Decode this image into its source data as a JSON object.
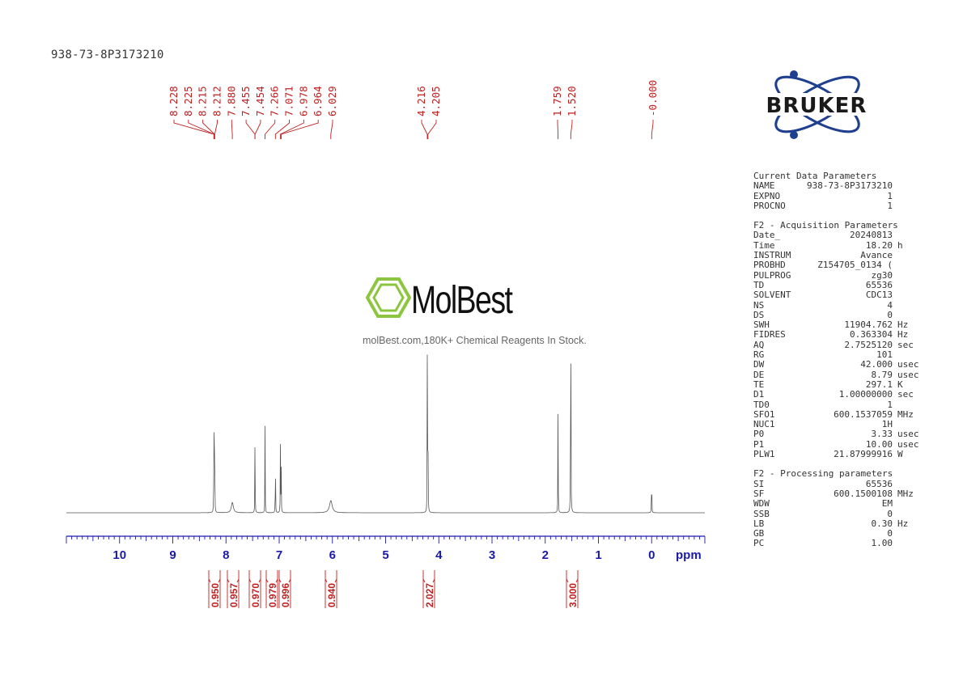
{
  "header": {
    "sample_title": "938-73-8P3173210"
  },
  "logo": {
    "text": "BRUKER",
    "color": "#1f3f8f"
  },
  "watermark": {
    "brand": "MolBest",
    "tagline": "molBest.com,180K+ Chemical Reagents In Stock."
  },
  "chart_data": {
    "type": "line",
    "xlabel": "ppm",
    "xlim": [
      11.0,
      -1.0
    ],
    "x_ticks": [
      10,
      9,
      8,
      7,
      6,
      5,
      4,
      3,
      2,
      1,
      0
    ],
    "x_tick_labels": [
      "10",
      "9",
      "8",
      "7",
      "6",
      "5",
      "4",
      "3",
      "2",
      "1",
      "0"
    ],
    "peaks": [
      {
        "ppm": 8.228,
        "intensity": 0.17
      },
      {
        "ppm": 8.225,
        "intensity": 0.17
      },
      {
        "ppm": 8.215,
        "intensity": 0.17
      },
      {
        "ppm": 8.212,
        "intensity": 0.17
      },
      {
        "ppm": 7.88,
        "intensity": 0.03
      },
      {
        "ppm": 7.455,
        "intensity": 0.14
      },
      {
        "ppm": 7.454,
        "intensity": 0.14
      },
      {
        "ppm": 7.266,
        "intensity": 0.25
      },
      {
        "ppm": 7.071,
        "intensity": 0.2
      },
      {
        "ppm": 6.978,
        "intensity": 0.21
      },
      {
        "ppm": 6.964,
        "intensity": 0.21
      },
      {
        "ppm": 6.029,
        "intensity": 0.035
      },
      {
        "ppm": 4.216,
        "intensity": 0.47
      },
      {
        "ppm": 4.205,
        "intensity": 0.47
      },
      {
        "ppm": 1.759,
        "intensity": 0.38
      },
      {
        "ppm": 1.52,
        "intensity": 1.0
      },
      {
        "ppm": -0.0,
        "intensity": 0.17
      }
    ],
    "peak_labels": [
      "8.228",
      "8.225",
      "8.215",
      "8.212",
      "7.880",
      "7.455",
      "7.454",
      "7.266",
      "7.071",
      "6.978",
      "6.964",
      "6.029",
      "4.216",
      "4.205",
      "1.759",
      "1.520",
      "-0.000"
    ],
    "peak_label_color": "#c02020",
    "integrals": [
      {
        "ppm": 8.22,
        "value": "0.950"
      },
      {
        "ppm": 7.88,
        "value": "0.957"
      },
      {
        "ppm": 7.455,
        "value": "0.970"
      },
      {
        "ppm": 7.07,
        "value": "0.979"
      },
      {
        "ppm": 6.97,
        "value": "0.996"
      },
      {
        "ppm": 6.029,
        "value": "0.940"
      },
      {
        "ppm": 4.21,
        "value": "2.027"
      },
      {
        "ppm": 1.52,
        "value": "3.000"
      }
    ],
    "axis_color": "#1a1aaa",
    "line_color": "#555555"
  },
  "parameters": {
    "current": {
      "heading": "Current Data Parameters",
      "rows": [
        {
          "key": "NAME",
          "value": "938-73-8P3173210",
          "unit": ""
        },
        {
          "key": "EXPNO",
          "value": "1",
          "unit": ""
        },
        {
          "key": "PROCNO",
          "value": "1",
          "unit": ""
        }
      ]
    },
    "acquisition": {
      "heading": "F2 - Acquisition Parameters",
      "rows": [
        {
          "key": "Date_",
          "value": "20240813",
          "unit": ""
        },
        {
          "key": "Time",
          "value": "18.20",
          "unit": "h"
        },
        {
          "key": "INSTRUM",
          "value": "Avance",
          "unit": ""
        },
        {
          "key": "PROBHD",
          "value": "Z154705_0134 (",
          "unit": ""
        },
        {
          "key": "PULPROG",
          "value": "zg30",
          "unit": ""
        },
        {
          "key": "TD",
          "value": "65536",
          "unit": ""
        },
        {
          "key": "SOLVENT",
          "value": "CDC13",
          "unit": ""
        },
        {
          "key": "NS",
          "value": "4",
          "unit": ""
        },
        {
          "key": "DS",
          "value": "0",
          "unit": ""
        },
        {
          "key": "SWH",
          "value": "11904.762",
          "unit": "Hz"
        },
        {
          "key": "FIDRES",
          "value": "0.363304",
          "unit": "Hz"
        },
        {
          "key": "AQ",
          "value": "2.7525120",
          "unit": "sec"
        },
        {
          "key": "RG",
          "value": "101",
          "unit": ""
        },
        {
          "key": "DW",
          "value": "42.000",
          "unit": "usec"
        },
        {
          "key": "DE",
          "value": "8.79",
          "unit": "usec"
        },
        {
          "key": "TE",
          "value": "297.1",
          "unit": "K"
        },
        {
          "key": "D1",
          "value": "1.00000000",
          "unit": "sec"
        },
        {
          "key": "TD0",
          "value": "1",
          "unit": ""
        },
        {
          "key": "SFO1",
          "value": "600.1537059",
          "unit": "MHz"
        },
        {
          "key": "NUC1",
          "value": "1H",
          "unit": ""
        },
        {
          "key": "P0",
          "value": "3.33",
          "unit": "usec"
        },
        {
          "key": "P1",
          "value": "10.00",
          "unit": "usec"
        },
        {
          "key": "PLW1",
          "value": "21.87999916",
          "unit": "W"
        }
      ]
    },
    "processing": {
      "heading": "F2 - Processing parameters",
      "rows": [
        {
          "key": "SI",
          "value": "65536",
          "unit": ""
        },
        {
          "key": "SF",
          "value": "600.1500108",
          "unit": "MHz"
        },
        {
          "key": "WDW",
          "value": "EM",
          "unit": ""
        },
        {
          "key": "SSB",
          "value": "0",
          "unit": ""
        },
        {
          "key": "LB",
          "value": "0.30",
          "unit": "Hz"
        },
        {
          "key": "GB",
          "value": "0",
          "unit": ""
        },
        {
          "key": "PC",
          "value": "1.00",
          "unit": ""
        }
      ]
    }
  }
}
